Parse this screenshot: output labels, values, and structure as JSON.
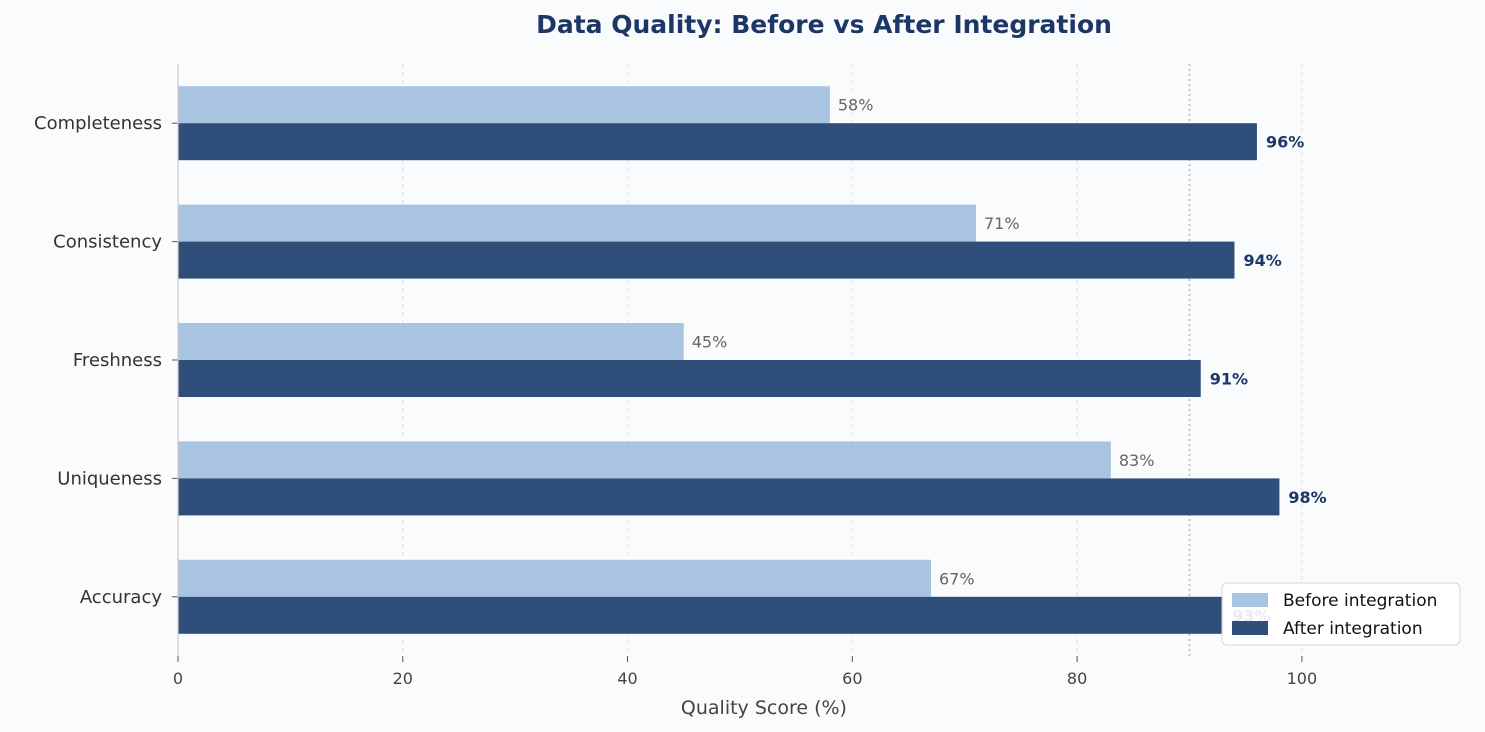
{
  "chart_data": {
    "type": "bar",
    "orientation": "horizontal",
    "title": "Data Quality: Before vs After Integration",
    "xlabel": "Quality Score (%)",
    "ylabel": "",
    "categories": [
      "Completeness",
      "Consistency",
      "Freshness",
      "Uniqueness",
      "Accuracy"
    ],
    "series": [
      {
        "name": "Before integration",
        "values": [
          58,
          71,
          45,
          83,
          67
        ],
        "labels": [
          "58%",
          "71%",
          "45%",
          "83%",
          "67%"
        ],
        "color": "#a8c4e0"
      },
      {
        "name": "After integration",
        "values": [
          96,
          94,
          91,
          98,
          93
        ],
        "labels": [
          "96%",
          "94%",
          "91%",
          "98%",
          "93%"
        ],
        "color": "#2f4f7a"
      }
    ],
    "xlim": [
      0,
      113
    ],
    "xticks": [
      0,
      20,
      40,
      60,
      80,
      100
    ],
    "xtick_labels": [
      "0",
      "20",
      "40",
      "60",
      "80",
      "100"
    ],
    "reference_line": 90,
    "grid": "x dashed",
    "legend_position": "lower-right",
    "colors": {
      "title": "#1c3666",
      "after_label": "#1c3666",
      "background": "#f9fbfd"
    }
  }
}
